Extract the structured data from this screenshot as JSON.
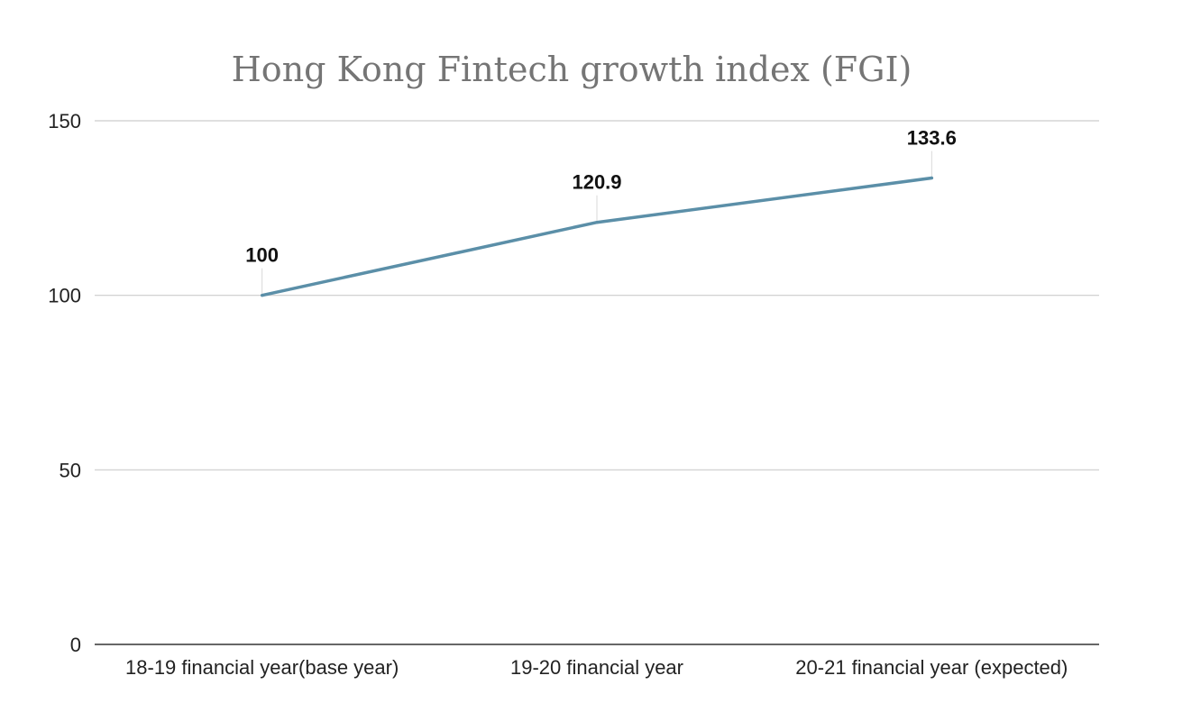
{
  "chart_data": {
    "type": "line",
    "title": "Hong Kong Fintech growth index (FGI)",
    "categories": [
      "18-19 financial year(base year)",
      "19-20 financial year",
      "20-21 financial year (expected)"
    ],
    "values": [
      100,
      120.9,
      133.6
    ],
    "data_labels": [
      "100",
      "120.9",
      "133.6"
    ],
    "y_ticks": [
      {
        "value": 0,
        "label": "0"
      },
      {
        "value": 50,
        "label": "50"
      },
      {
        "value": 100,
        "label": "100"
      },
      {
        "value": 150,
        "label": "150"
      }
    ],
    "ylim": [
      0,
      150
    ],
    "xlabel": "",
    "ylabel": "",
    "grid": true,
    "legend": "none",
    "line_color": "#5b8fa8"
  }
}
